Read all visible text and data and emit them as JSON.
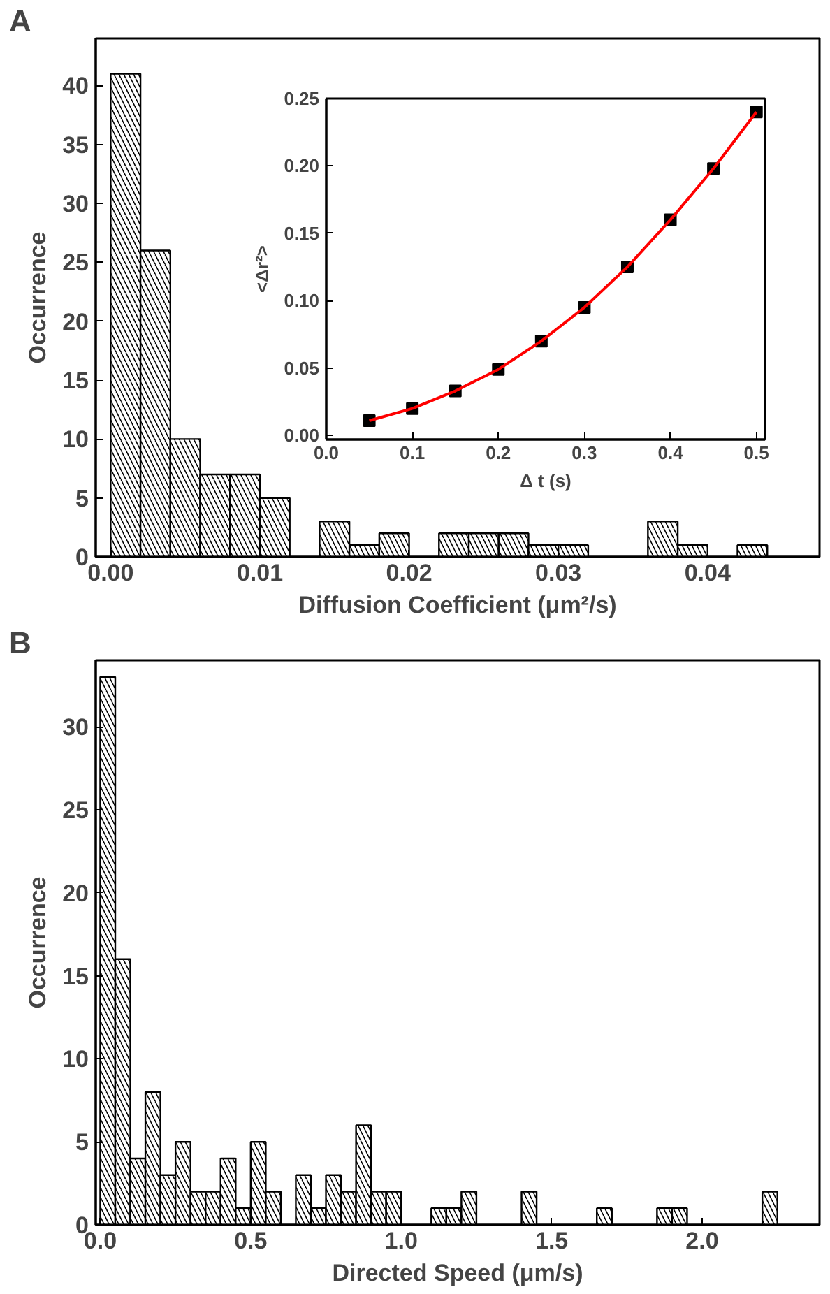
{
  "chart_data": [
    {
      "type": "histogram",
      "title": "A",
      "xlabel": "Diffusion Coefficient (μm²/s)",
      "ylabel": "Occurrence",
      "bins": [
        0,
        0.002,
        0.004,
        0.006,
        0.008,
        0.01,
        0.012,
        0.014,
        0.016,
        0.018,
        0.02,
        0.022,
        0.024,
        0.026,
        0.028,
        0.03,
        0.032,
        0.034,
        0.036,
        0.038,
        0.04,
        0.042,
        0.044
      ],
      "values": [
        41,
        26,
        10,
        7,
        7,
        5,
        0,
        3,
        1,
        2,
        0,
        2,
        2,
        2,
        1,
        1,
        0,
        0,
        3,
        1,
        0,
        1
      ],
      "color": "#ffffff",
      "xlim": [
        -0.001,
        0.0475
      ],
      "ylim": [
        0,
        44
      ],
      "xticks": [
        {
          "value": 0,
          "label": "0.00"
        },
        {
          "value": 0.01,
          "label": "0.01"
        },
        {
          "value": 0.02,
          "label": "0.02"
        },
        {
          "value": 0.03,
          "label": "0.03"
        },
        {
          "value": 0.04,
          "label": "0.04"
        }
      ],
      "yticks": [
        0,
        5,
        10,
        15,
        20,
        25,
        30,
        35,
        40
      ],
      "grid": false
    },
    {
      "type": "scatter",
      "xlabel": "Δ t (s)",
      "ylabel": "<Δr²>",
      "x": [
        0.05,
        0.1,
        0.15,
        0.2,
        0.25,
        0.3,
        0.35,
        0.4,
        0.45,
        0.5
      ],
      "series": [
        {
          "type": "scatter",
          "color": "#000000",
          "marker": "square",
          "values": [
            0.011,
            0.02,
            0.033,
            0.049,
            0.07,
            0.095,
            0.125,
            0.16,
            0.198,
            0.24
          ]
        },
        {
          "type": "line",
          "color": "#ff0000",
          "marker": "none",
          "x": [
            0.05,
            0.1,
            0.15,
            0.2,
            0.25,
            0.3,
            0.35,
            0.4,
            0.45,
            0.5
          ],
          "values": [
            0.011,
            0.02,
            0.033,
            0.049,
            0.07,
            0.095,
            0.125,
            0.16,
            0.198,
            0.24
          ]
        }
      ],
      "xlim": [
        0,
        0.51
      ],
      "ylim": [
        -0.003,
        0.25
      ],
      "xticks": [
        {
          "value": 0,
          "label": "0.0"
        },
        0.1,
        0.2,
        0.3,
        0.4,
        0.5
      ],
      "yticks": [
        {
          "value": 0,
          "label": "0.00"
        },
        0.05,
        {
          "value": 0.1,
          "label": "0.10"
        },
        0.15,
        {
          "value": 0.2,
          "label": "0.20"
        },
        0.25
      ],
      "grid": false
    },
    {
      "type": "histogram",
      "title": "B",
      "xlabel": "Directed Speed (μm/s)",
      "ylabel": "Occurrence",
      "bins": [
        0,
        0.05,
        0.1,
        0.15,
        0.2,
        0.25,
        0.3,
        0.35,
        0.4,
        0.45,
        0.5,
        0.55,
        0.6,
        0.65,
        0.7,
        0.75,
        0.8,
        0.85,
        0.9,
        0.95,
        1.0,
        1.05,
        1.1,
        1.15,
        1.2,
        1.25,
        1.3,
        1.35,
        1.4,
        1.45,
        1.5,
        1.55,
        1.6,
        1.65,
        1.7,
        1.75,
        1.8,
        1.85,
        1.9,
        1.95,
        2.0,
        2.05,
        2.1,
        2.15,
        2.2,
        2.25
      ],
      "values": [
        33,
        16,
        4,
        8,
        3,
        5,
        2,
        2,
        4,
        1,
        5,
        2,
        0,
        3,
        1,
        3,
        2,
        6,
        2,
        2,
        0,
        0,
        1,
        1,
        2,
        0,
        0,
        0,
        2,
        0,
        0,
        0,
        0,
        1,
        0,
        0,
        0,
        1,
        1,
        0,
        0,
        0,
        0,
        0,
        2
      ],
      "color": "#ffffff",
      "xlim": [
        -0.015,
        2.39
      ],
      "ylim": [
        0,
        34
      ],
      "xticks": [
        {
          "value": 0,
          "label": "0.0"
        },
        0.5,
        {
          "value": 1,
          "label": "1.0"
        },
        1.5,
        {
          "value": 2,
          "label": "2.0"
        }
      ],
      "yticks": [
        0,
        5,
        10,
        15,
        20,
        25,
        30
      ],
      "grid": false
    }
  ]
}
